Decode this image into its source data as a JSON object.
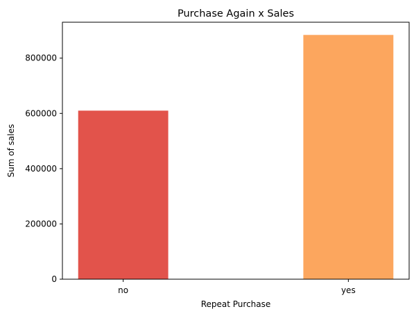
{
  "chart_data": {
    "type": "bar",
    "title": "Purchase Again x Sales",
    "xlabel": "Repeat Purchase",
    "ylabel": "Sum of sales",
    "categories": [
      "no",
      "yes"
    ],
    "values": [
      610000,
      884000
    ],
    "colors": [
      "#e2534b",
      "#fca65e"
    ],
    "ylim": [
      0,
      930000
    ],
    "yticks": [
      0,
      200000,
      400000,
      600000,
      800000
    ],
    "ytick_labels": [
      "0",
      "200000",
      "400000",
      "600000",
      "800000"
    ],
    "grid": false,
    "legend": "none"
  }
}
